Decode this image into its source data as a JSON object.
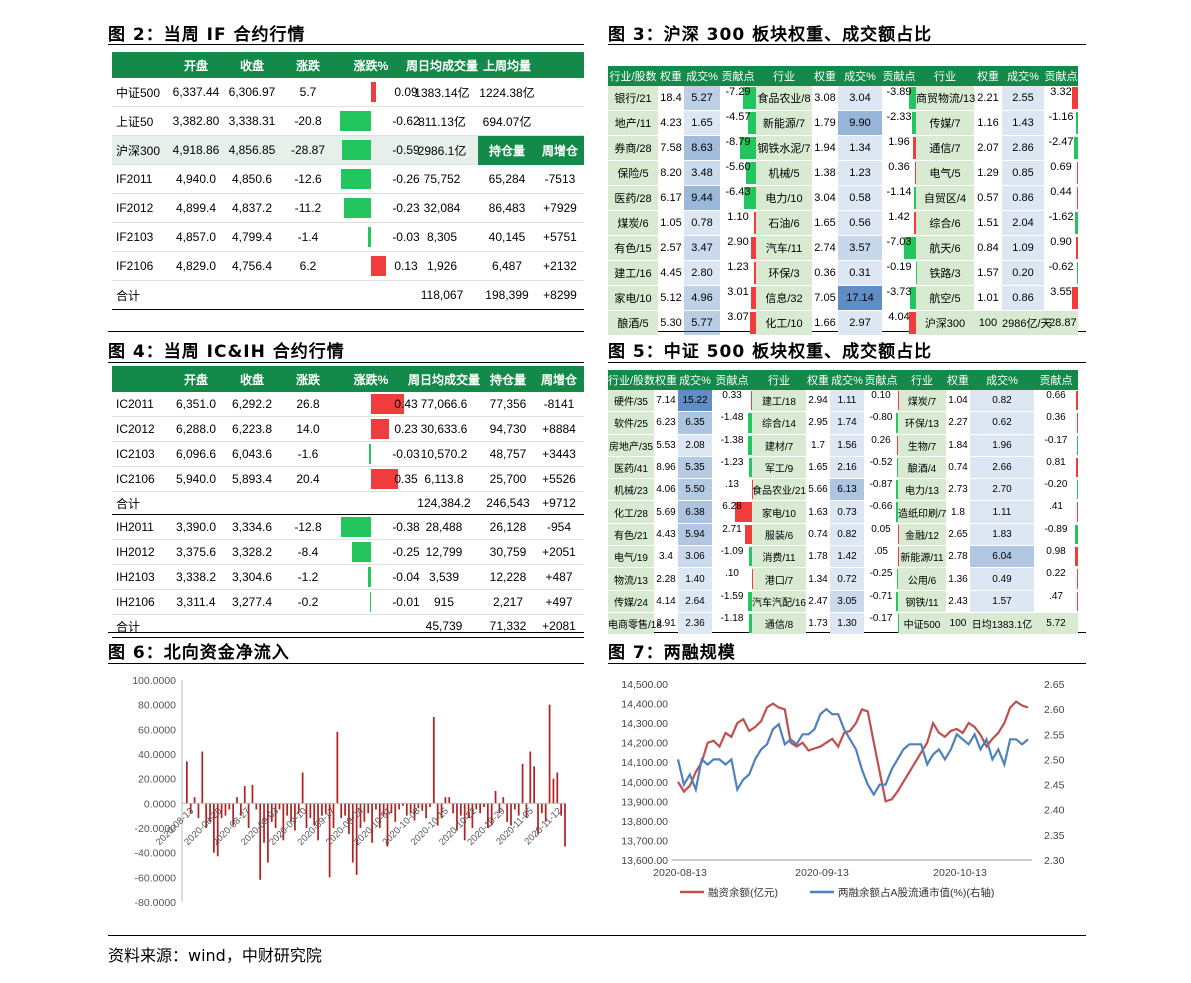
{
  "fig2": {
    "title": "图 2：当周 IF 合约行情",
    "headers": [
      "",
      "开盘",
      "收盘",
      "涨跌",
      "涨跌%",
      "周日均成交量",
      "上周均量"
    ],
    "headers2": [
      "持仓量",
      "周增仓"
    ],
    "rows_top": [
      [
        "中证500",
        "6,337.44",
        "6,306.97",
        "5.7",
        "0.09",
        "1383.14亿",
        "1224.38亿"
      ],
      [
        "上证50",
        "3,382.80",
        "3,338.31",
        "-20.8",
        "-0.62",
        "811.13亿",
        "694.07亿"
      ],
      [
        "沪深300",
        "4,918.86",
        "4,856.85",
        "-28.87",
        "-0.59",
        "2986.1亿"
      ]
    ],
    "rows": [
      [
        "IF2011",
        "4,940.0",
        "4,850.6",
        "-12.6",
        "-0.26",
        "75,752",
        "65,284",
        "-7513"
      ],
      [
        "IF2012",
        "4,899.4",
        "4,837.2",
        "-11.2",
        "-0.23",
        "32,084",
        "86,483",
        "+7929"
      ],
      [
        "IF2103",
        "4,857.0",
        "4,799.4",
        "-1.4",
        "-0.03",
        "8,305",
        "40,145",
        "+5751"
      ],
      [
        "IF2106",
        "4,829.0",
        "4,756.4",
        "6.2",
        "0.13",
        "1,926",
        "6,487",
        "+2132"
      ]
    ],
    "total": [
      "合计",
      "118,067",
      "198,399",
      "+8299"
    ]
  },
  "fig3": {
    "title": "图 3：沪深 300 板块权重、成交额占比",
    "headers": [
      "行业/股数",
      "权重",
      "成交%",
      "贡献点",
      "行业",
      "权重",
      "成交%",
      "贡献点",
      "行业",
      "权重",
      "成交%",
      "贡献点"
    ],
    "rows": [
      [
        "银行/21",
        "18.4",
        "5.27",
        "-7.29",
        "食品农业/8",
        "3.08",
        "3.04",
        "-3.89",
        "商贸物流/13",
        "2.21",
        "2.55",
        "3.32"
      ],
      [
        "地产/11",
        "4.23",
        "1.65",
        "-4.57",
        "新能源/7",
        "1.79",
        "9.90",
        "-2.33",
        "传媒/7",
        "1.16",
        "1.43",
        "-1.16"
      ],
      [
        "券商/28",
        "7.58",
        "8.63",
        "-8.79",
        "钢铁水泥/7",
        "1.94",
        "1.34",
        "1.96",
        "通信/7",
        "2.07",
        "2.86",
        "-2.47"
      ],
      [
        "保险/5",
        "8.20",
        "3.48",
        "-5.60",
        "机械/5",
        "1.38",
        "1.23",
        "0.36",
        "电气/5",
        "1.29",
        "0.85",
        "0.69"
      ],
      [
        "医药/28",
        "6.17",
        "9.44",
        "-6.43",
        "电力/10",
        "3.04",
        "0.58",
        "-1.14",
        "自贸区/4",
        "0.57",
        "0.86",
        "0.44"
      ],
      [
        "煤炭/6",
        "1.05",
        "0.78",
        "1.10",
        "石油/6",
        "1.65",
        "0.56",
        "1.42",
        "综合/6",
        "1.51",
        "2.04",
        "-1.62"
      ],
      [
        "有色/15",
        "2.57",
        "3.47",
        "2.90",
        "汽车/11",
        "2.74",
        "3.57",
        "-7.03",
        "航天/6",
        "0.84",
        "1.09",
        "0.90"
      ],
      [
        "建工/16",
        "4.45",
        "2.80",
        "1.23",
        "环保/3",
        "0.36",
        "0.31",
        "-0.19",
        "铁路/3",
        "1.57",
        "0.20",
        "-0.62"
      ],
      [
        "家电/10",
        "5.12",
        "4.96",
        "3.01",
        "信息/32",
        "7.05",
        "17.14",
        "-3.73",
        "航空/5",
        "1.01",
        "0.86",
        "3.55"
      ],
      [
        "酿酒/5",
        "5.30",
        "5.77",
        "3.07",
        "化工/10",
        "1.66",
        "2.97",
        "4.04",
        "沪深300",
        "100",
        "2986亿/天",
        "-28.87"
      ]
    ]
  },
  "fig4": {
    "title": "图 4：当周 IC&IH 合约行情",
    "headers": [
      "",
      "开盘",
      "收盘",
      "涨跌",
      "涨跌%",
      "周日均成交量",
      "持仓量",
      "周增仓"
    ],
    "ic": [
      [
        "IC2011",
        "6,351.0",
        "6,292.2",
        "26.8",
        "0.43",
        "77,066.6",
        "77,356",
        "-8141"
      ],
      [
        "IC2012",
        "6,288.0",
        "6,223.8",
        "14.0",
        "0.23",
        "30,633.6",
        "94,730",
        "+8884"
      ],
      [
        "IC2103",
        "6,096.6",
        "6,043.6",
        "-1.6",
        "-0.03",
        "10,570.2",
        "48,757",
        "+3443"
      ],
      [
        "IC2106",
        "5,940.0",
        "5,893.4",
        "20.4",
        "0.35",
        "6,113.8",
        "25,700",
        "+5526"
      ]
    ],
    "ic_total": [
      "合计",
      "124,384.2",
      "246,543",
      "+9712"
    ],
    "ih": [
      [
        "IH2011",
        "3,390.0",
        "3,334.6",
        "-12.8",
        "-0.38",
        "28,488",
        "26,128",
        "-954"
      ],
      [
        "IH2012",
        "3,375.6",
        "3,328.2",
        "-8.4",
        "-0.25",
        "12,799",
        "30,759",
        "+2051"
      ],
      [
        "IH2103",
        "3,338.2",
        "3,304.6",
        "-1.2",
        "-0.04",
        "3,539",
        "12,228",
        "+487"
      ],
      [
        "IH2106",
        "3,311.4",
        "3,277.4",
        "-0.2",
        "-0.01",
        "915",
        "2,217",
        "+497"
      ]
    ],
    "ih_total": [
      "合计",
      "45,739",
      "71,332",
      "+2081"
    ]
  },
  "fig5": {
    "title": "图 5：中证 500 板块权重、成交额占比",
    "headers": [
      "行业/股数",
      "权重",
      "成交%",
      "贡献点",
      "行业",
      "权重",
      "成交%",
      "贡献点",
      "行业",
      "权重",
      "成交%",
      "贡献点"
    ],
    "rows": [
      [
        "硬件/35",
        "7.14",
        "15.22",
        "0.33",
        "建工/18",
        "2.94",
        "1.11",
        "0.10",
        "煤炭/7",
        "1.04",
        "0.82",
        "0.66"
      ],
      [
        "软件/25",
        "6.23",
        "6.35",
        "-1.48",
        "综合/14",
        "2.95",
        "1.74",
        "-0.80",
        "环保/13",
        "2.27",
        "0.62",
        "0.36"
      ],
      [
        "房地产/35",
        "5.53",
        "2.08",
        "-1.38",
        "建材/7",
        "1.7",
        "1.56",
        "0.26",
        "生物/7",
        "1.84",
        "1.96",
        "-0.17"
      ],
      [
        "医药/41",
        "8.96",
        "5.35",
        "-1.23",
        "军工/9",
        "1.65",
        "2.16",
        "-0.52",
        "酿酒/4",
        "0.74",
        "2.66",
        "0.81"
      ],
      [
        "机械/23",
        "4.06",
        "5.50",
        ".13",
        "食品农业/21",
        "5.66",
        "6.13",
        "-0.87",
        "电力/13",
        "2.73",
        "2.70",
        "-0.20"
      ],
      [
        "化工/28",
        "5.69",
        "6.38",
        "6.28",
        "家电/10",
        "1.63",
        "0.73",
        "-0.66",
        "造纸印刷/7",
        "1.8",
        "1.11",
        ".41"
      ],
      [
        "有色/21",
        "4.43",
        "5.94",
        "2.71",
        "服装/6",
        "0.74",
        "0.82",
        "0.05",
        "金融/12",
        "2.65",
        "1.83",
        "-0.89"
      ],
      [
        "电气/19",
        "3.4",
        "3.06",
        "-1.09",
        "消费/11",
        "1.78",
        "1.42",
        ".05",
        "新能源/11",
        "2.78",
        "6.04",
        "0.98"
      ],
      [
        "物流/13",
        "2.28",
        "1.40",
        ".10",
        "港口/7",
        "1.34",
        "0.72",
        "-0.25",
        "公用/6",
        "1.36",
        "0.49",
        "0.22"
      ],
      [
        "传媒/24",
        "4.14",
        "2.64",
        "-1.59",
        "汽车汽配/16",
        "2.47",
        "3.05",
        "-0.71",
        "钢铁/11",
        "2.43",
        "1.57",
        ".47"
      ],
      [
        "电商零售/18",
        "2.91",
        "2.36",
        "-1.18",
        "通信/8",
        "1.73",
        "1.30",
        "-0.17",
        "中证500",
        "100",
        "日均1383.1亿",
        "5.72"
      ]
    ]
  },
  "fig6": {
    "title": "图 6：北向资金净流入",
    "yticks": [
      "100.0000",
      "80.0000",
      "60.0000",
      "40.0000",
      "20.0000",
      "0.0000",
      "-20.0000",
      "-40.0000",
      "-60.0000",
      "-80.0000"
    ],
    "xticks": [
      "2020-08-13",
      "2020-08-20",
      "2020-08-27",
      "2020-09-03",
      "2020-09-10",
      "2020-09-17",
      "2020-09-24",
      "2020-10-01",
      "2020-10-08",
      "2020-10-15",
      "2020-10-22",
      "2020-10-29",
      "2020-11-05",
      "2020-11-12"
    ],
    "chart_data": {
      "type": "bar",
      "ylim": [
        -80,
        100
      ],
      "values": [
        34,
        -8,
        5,
        -12,
        42,
        -20,
        -15,
        -40,
        -43,
        -12,
        -10,
        -5,
        -18,
        5,
        -10,
        14,
        -20,
        15,
        -5,
        -62,
        -32,
        -48,
        -15,
        -20,
        -5,
        -30,
        -10,
        -15,
        -22,
        -8,
        25,
        -20,
        -12,
        -18,
        -30,
        -10,
        -8,
        -60,
        -20,
        58,
        -12,
        -10,
        -25,
        -48,
        -58,
        -20,
        -15,
        -8,
        -32,
        -5,
        -20,
        -10,
        -35,
        -8,
        -15,
        -5,
        -2,
        -10,
        -8,
        -14,
        -4,
        -6,
        -12,
        -3,
        70,
        -18,
        -12,
        5,
        5,
        -8,
        -22,
        -10,
        -30,
        -12,
        -20,
        -5,
        -8,
        -3,
        -20,
        -18,
        10,
        -8,
        5,
        -15,
        -18,
        -5,
        -10,
        32,
        -12,
        42,
        30,
        -25,
        -8,
        -15,
        80,
        20,
        25,
        -10,
        -35
      ]
    }
  },
  "fig7": {
    "title": "图 7：两融规模",
    "yleft": [
      "14,500.00",
      "14,400.00",
      "14,300.00",
      "14,200.00",
      "14,100.00",
      "14,000.00",
      "13,900.00",
      "13,800.00",
      "13,700.00",
      "13,600.00"
    ],
    "yright": [
      "2.65",
      "2.60",
      "2.55",
      "2.50",
      "2.45",
      "2.40",
      "2.35",
      "2.30"
    ],
    "xticks": [
      "2020-08-13",
      "2020-09-13",
      "2020-10-13"
    ],
    "legend": [
      "融资余额(亿元)",
      "两融余额占A股流通市值(%)(右轴)"
    ],
    "colors": [
      "#c0504d",
      "#4f81bd"
    ],
    "chart_data": {
      "type": "line",
      "ylim": [
        13600,
        14500
      ],
      "y2lim": [
        2.3,
        2.65
      ],
      "series": [
        {
          "name": "融资余额(亿元)",
          "values": [
            14000,
            13950,
            13980,
            14050,
            14100,
            14200,
            14210,
            14180,
            14250,
            14230,
            14300,
            14320,
            14260,
            14280,
            14310,
            14380,
            14400,
            14380,
            14370,
            14200,
            14180,
            14200,
            14160,
            14170,
            14180,
            14200,
            14220,
            14180,
            14250,
            14260,
            14300,
            14370,
            14360,
            14200,
            14050,
            13900,
            13910,
            13950,
            14000,
            14050,
            14100,
            14150,
            14200,
            14300,
            14250,
            14230,
            14260,
            14270,
            14250,
            14300,
            14280,
            14240,
            14180,
            14220,
            14250,
            14300,
            14380,
            14410,
            14390,
            14380
          ]
        },
        {
          "name": "两融余额占A股流通市值(%)(右轴)",
          "values": [
            2.5,
            2.45,
            2.47,
            2.44,
            2.5,
            2.49,
            2.5,
            2.5,
            2.49,
            2.5,
            2.44,
            2.46,
            2.47,
            2.5,
            2.52,
            2.53,
            2.56,
            2.57,
            2.53,
            2.54,
            2.53,
            2.55,
            2.55,
            2.56,
            2.59,
            2.6,
            2.59,
            2.59,
            2.56,
            2.54,
            2.52,
            2.48,
            2.45,
            2.43,
            2.45,
            2.45,
            2.48,
            2.5,
            2.52,
            2.53,
            2.53,
            2.53,
            2.49,
            2.51,
            2.52,
            2.5,
            2.52,
            2.55,
            2.54,
            2.53,
            2.55,
            2.52,
            2.54,
            2.5,
            2.52,
            2.49,
            2.54,
            2.54,
            2.53,
            2.54
          ]
        }
      ]
    }
  },
  "source": "资料来源：wind，中财研究院"
}
